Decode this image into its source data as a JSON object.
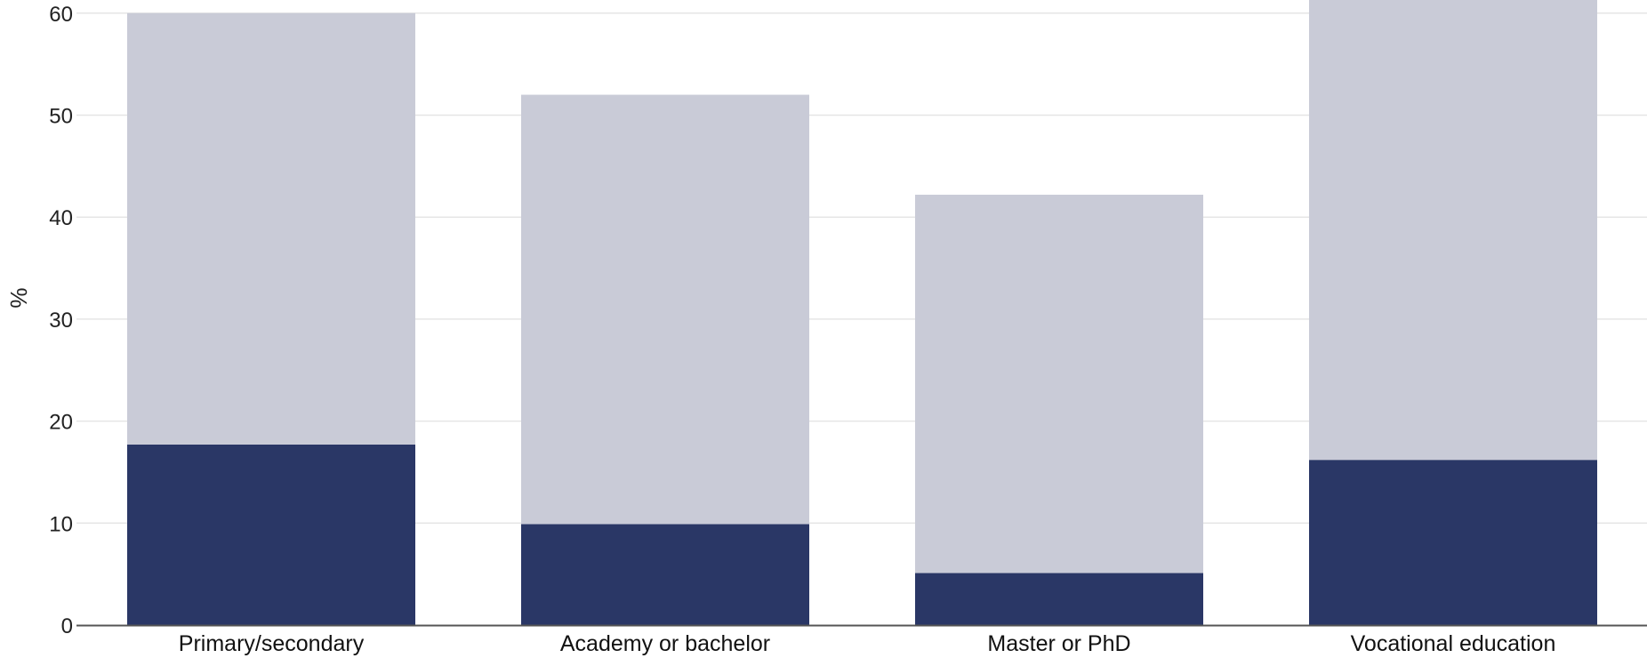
{
  "chart_data": {
    "type": "bar",
    "stacked": true,
    "ylabel": "%",
    "xlabel": "",
    "ylim": [
      0,
      60
    ],
    "yticks": [
      "0",
      "10",
      "20",
      "30",
      "40",
      "50",
      "60"
    ],
    "grid": true,
    "categories": [
      "Primary/secondary",
      "Academy or bachelor",
      "Master or PhD",
      "Vocational education"
    ],
    "series": [
      {
        "values": [
          17.7,
          9.9,
          5.1,
          16.2
        ],
        "color": "#2a3766"
      },
      {
        "values": [
          42.3,
          42.1,
          37.1,
          48.0
        ],
        "color": "#c9cbd7"
      }
    ]
  }
}
